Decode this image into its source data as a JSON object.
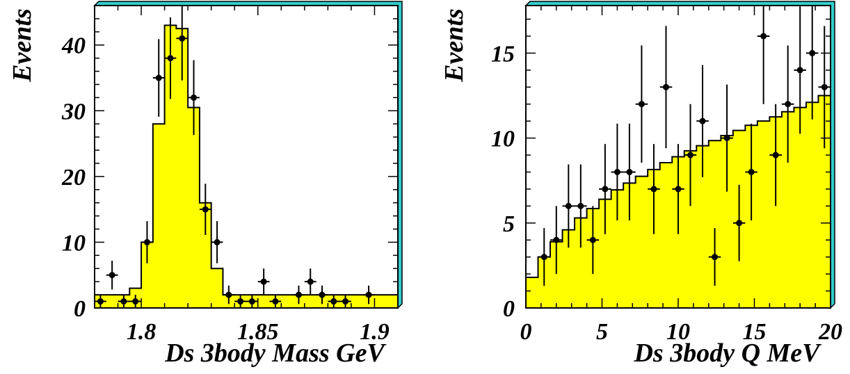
{
  "colors": {
    "fill": "#ffff00",
    "frame_shadow": "#33cccc",
    "line": "#000000"
  },
  "chart_data": [
    {
      "type": "histogram",
      "xlabel": "Ds 3body Mass GeV",
      "ylabel": "Events",
      "xlim": [
        1.78,
        1.91
      ],
      "ylim": [
        0,
        46
      ],
      "x_ticks": [
        "1.8",
        "1.85",
        "1.9"
      ],
      "y_ticks": [
        "0",
        "10",
        "20",
        "30",
        "40"
      ],
      "bin_width": 0.005,
      "histogram": [
        2,
        2,
        2,
        3,
        10,
        28,
        43,
        42.5,
        30.5,
        16,
        6,
        2,
        2,
        2,
        2,
        2,
        2,
        2,
        2,
        2,
        2,
        2,
        2,
        2,
        2,
        2
      ],
      "points": [
        {
          "x": 1.7825,
          "y": 1,
          "err": 1
        },
        {
          "x": 1.7875,
          "y": 5,
          "err": 2.2
        },
        {
          "x": 1.7925,
          "y": 1,
          "err": 1
        },
        {
          "x": 1.7975,
          "y": 1,
          "err": 1
        },
        {
          "x": 1.8025,
          "y": 10,
          "err": 3.2
        },
        {
          "x": 1.8075,
          "y": 35,
          "err": 5.9
        },
        {
          "x": 1.8125,
          "y": 38,
          "err": 6.2
        },
        {
          "x": 1.8175,
          "y": 41,
          "err": 6.4
        },
        {
          "x": 1.8225,
          "y": 32,
          "err": 5.7
        },
        {
          "x": 1.8275,
          "y": 15,
          "err": 3.9
        },
        {
          "x": 1.8325,
          "y": 10,
          "err": 3.2
        },
        {
          "x": 1.8375,
          "y": 2,
          "err": 1.4
        },
        {
          "x": 1.8425,
          "y": 1,
          "err": 1
        },
        {
          "x": 1.8475,
          "y": 1,
          "err": 1
        },
        {
          "x": 1.8525,
          "y": 4,
          "err": 2
        },
        {
          "x": 1.8575,
          "y": 1,
          "err": 1
        },
        {
          "x": 1.8675,
          "y": 2,
          "err": 1.4
        },
        {
          "x": 1.8725,
          "y": 4,
          "err": 2
        },
        {
          "x": 1.8775,
          "y": 2,
          "err": 1.4
        },
        {
          "x": 1.8825,
          "y": 1,
          "err": 1
        },
        {
          "x": 1.8875,
          "y": 1,
          "err": 1
        },
        {
          "x": 1.8975,
          "y": 2,
          "err": 1.4
        }
      ]
    },
    {
      "type": "histogram",
      "xlabel": "Ds 3body Q MeV",
      "ylabel": "Events",
      "xlim": [
        0,
        20
      ],
      "ylim": [
        0,
        17.8
      ],
      "x_ticks": [
        "0",
        "5",
        "10",
        "15",
        "20"
      ],
      "y_ticks": [
        "0",
        "5",
        "10",
        "15"
      ],
      "bin_width": 0.8,
      "histogram": [
        1.8,
        3.0,
        3.9,
        4.6,
        5.3,
        5.85,
        6.4,
        6.95,
        7.35,
        7.75,
        8.15,
        8.55,
        8.9,
        9.25,
        9.55,
        9.85,
        10.15,
        10.45,
        10.75,
        11.0,
        11.25,
        11.55,
        11.8,
        12.1,
        12.5
      ],
      "points": [
        {
          "x": 1.2,
          "y": 3,
          "err": 1.7
        },
        {
          "x": 2.0,
          "y": 4,
          "err": 2.0
        },
        {
          "x": 2.8,
          "y": 6,
          "err": 2.45
        },
        {
          "x": 3.6,
          "y": 6,
          "err": 2.45
        },
        {
          "x": 4.4,
          "y": 4,
          "err": 2.0
        },
        {
          "x": 5.2,
          "y": 7,
          "err": 2.65
        },
        {
          "x": 6.0,
          "y": 8,
          "err": 2.85
        },
        {
          "x": 6.8,
          "y": 8,
          "err": 2.85
        },
        {
          "x": 7.6,
          "y": 12,
          "err": 3.45
        },
        {
          "x": 8.4,
          "y": 7,
          "err": 2.65
        },
        {
          "x": 9.2,
          "y": 13,
          "err": 3.6
        },
        {
          "x": 10.0,
          "y": 7,
          "err": 2.65
        },
        {
          "x": 10.8,
          "y": 9,
          "err": 3.0
        },
        {
          "x": 11.6,
          "y": 11,
          "err": 3.3
        },
        {
          "x": 12.4,
          "y": 3,
          "err": 1.7
        },
        {
          "x": 13.2,
          "y": 10,
          "err": 3.15
        },
        {
          "x": 14.0,
          "y": 5,
          "err": 2.25
        },
        {
          "x": 14.8,
          "y": 8,
          "err": 2.85
        },
        {
          "x": 15.6,
          "y": 16,
          "err": 4.0
        },
        {
          "x": 16.4,
          "y": 9,
          "err": 3.0
        },
        {
          "x": 17.2,
          "y": 12,
          "err": 3.45
        },
        {
          "x": 18.0,
          "y": 14,
          "err": 3.75
        },
        {
          "x": 18.8,
          "y": 15,
          "err": 3.9
        },
        {
          "x": 19.6,
          "y": 13,
          "err": 3.6
        }
      ]
    }
  ]
}
